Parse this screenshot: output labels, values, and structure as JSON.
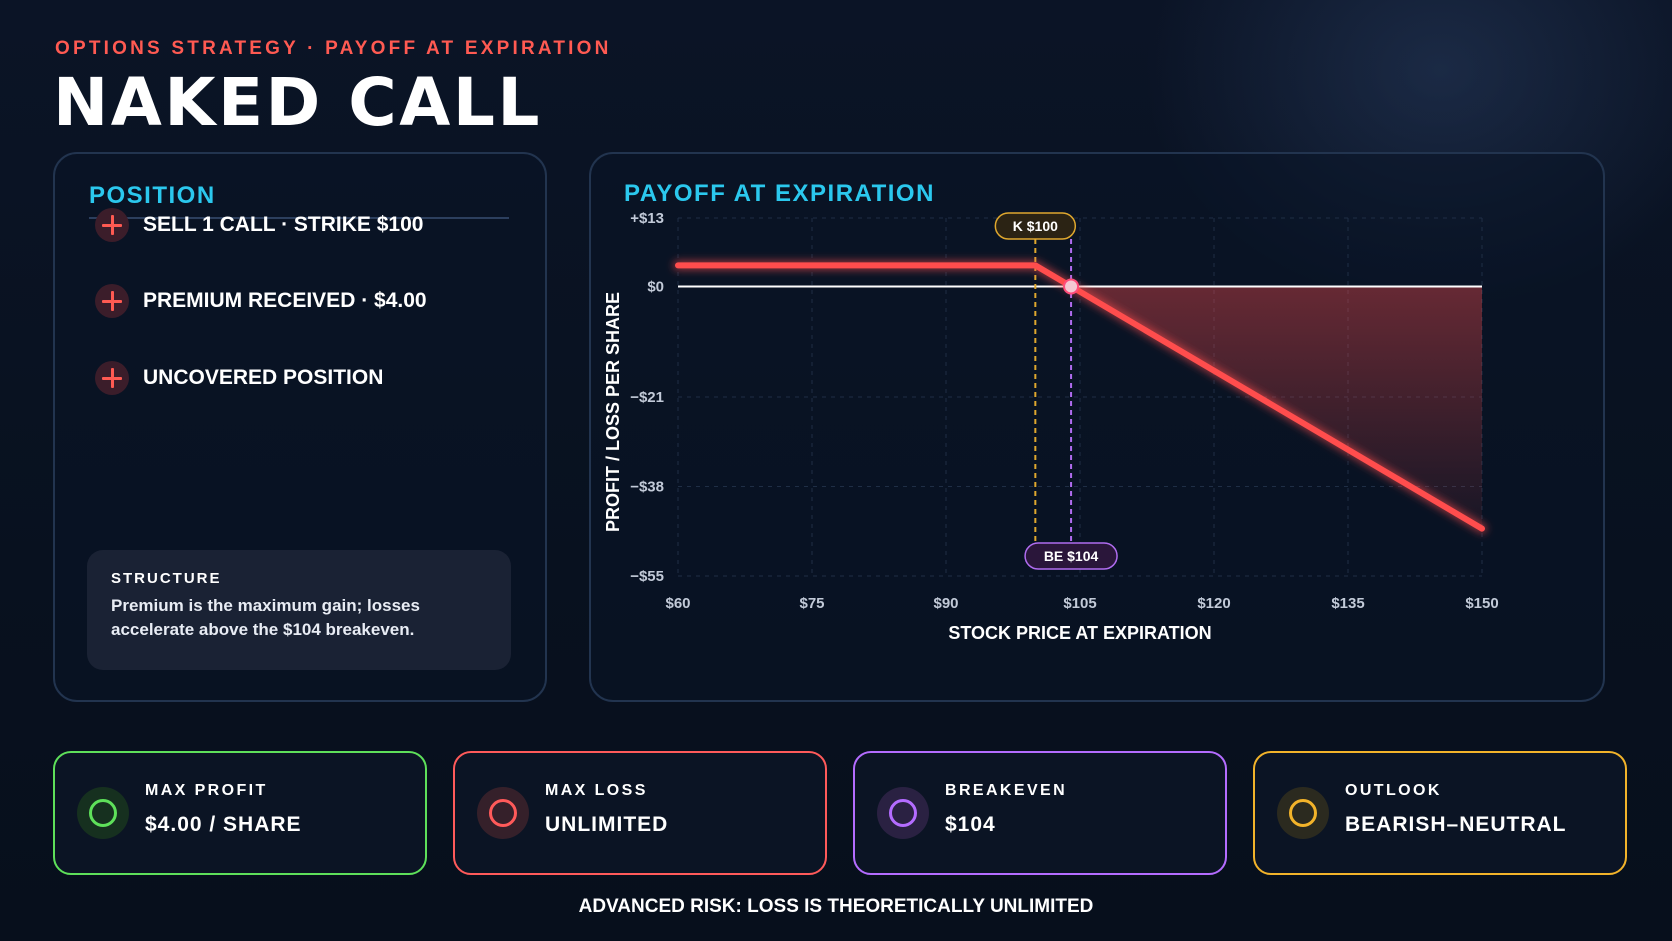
{
  "header": {
    "eyebrow": "OPTIONS STRATEGY · PAYOFF AT EXPIRATION",
    "title": "NAKED CALL"
  },
  "position_panel": {
    "title": "POSITION",
    "items": [
      {
        "label": "SELL 1 CALL · STRIKE $100",
        "icon": "plus-icon"
      },
      {
        "label": "PREMIUM RECEIVED · $4.00",
        "icon": "plus-icon"
      },
      {
        "label": "UNCOVERED POSITION",
        "icon": "plus-icon"
      }
    ],
    "structure": {
      "title": "STRUCTURE",
      "text": "Premium is the maximum gain; losses accelerate above the $104 breakeven."
    }
  },
  "chart_panel": {
    "title": "PAYOFF AT EXPIRATION"
  },
  "chart_data": {
    "type": "line",
    "title": "PAYOFF AT EXPIRATION",
    "xlabel": "STOCK PRICE AT EXPIRATION",
    "ylabel": "PROFIT / LOSS PER SHARE",
    "xlim": [
      60,
      150
    ],
    "ylim": [
      -55,
      13
    ],
    "x_ticks": [
      60,
      75,
      90,
      105,
      120,
      135,
      150
    ],
    "x_tick_labels": [
      "$60",
      "$75",
      "$90",
      "$105",
      "$120",
      "$135",
      "$150"
    ],
    "y_ticks": [
      13,
      0,
      -21,
      -38,
      -55
    ],
    "y_tick_labels": [
      "+$13",
      "$0",
      "−$21",
      "−$38",
      "−$55"
    ],
    "grid": true,
    "series": [
      {
        "x": [
          60,
          100,
          104,
          150
        ],
        "y": [
          4,
          4,
          0,
          -46
        ]
      }
    ],
    "annotations": [
      {
        "type": "vline",
        "x": 100,
        "label": "K $100",
        "color": "#e0a82e"
      },
      {
        "type": "vline",
        "x": 104,
        "label": "BE $104",
        "color": "#b06cf0"
      }
    ],
    "loss_fill": true,
    "line_color": "#ff4d4d"
  },
  "cards": [
    {
      "label": "MAX PROFIT",
      "value": "$4.00 / SHARE",
      "color": "#5ee05a",
      "bg": "#16301f",
      "icon": "ring-icon"
    },
    {
      "label": "MAX LOSS",
      "value": "UNLIMITED",
      "color": "#ff5a5a",
      "bg": "#35202a",
      "icon": "ring-icon"
    },
    {
      "label": "BREAKEVEN",
      "value": "$104",
      "color": "#b46cff",
      "bg": "#2a2142",
      "icon": "ring-icon"
    },
    {
      "label": "OUTLOOK",
      "value": "BEARISH–NEUTRAL",
      "color": "#f2b32a",
      "bg": "#2b2a1f",
      "icon": "ring-icon"
    }
  ],
  "footer": "ADVANCED RISK: LOSS IS THEORETICALLY UNLIMITED"
}
